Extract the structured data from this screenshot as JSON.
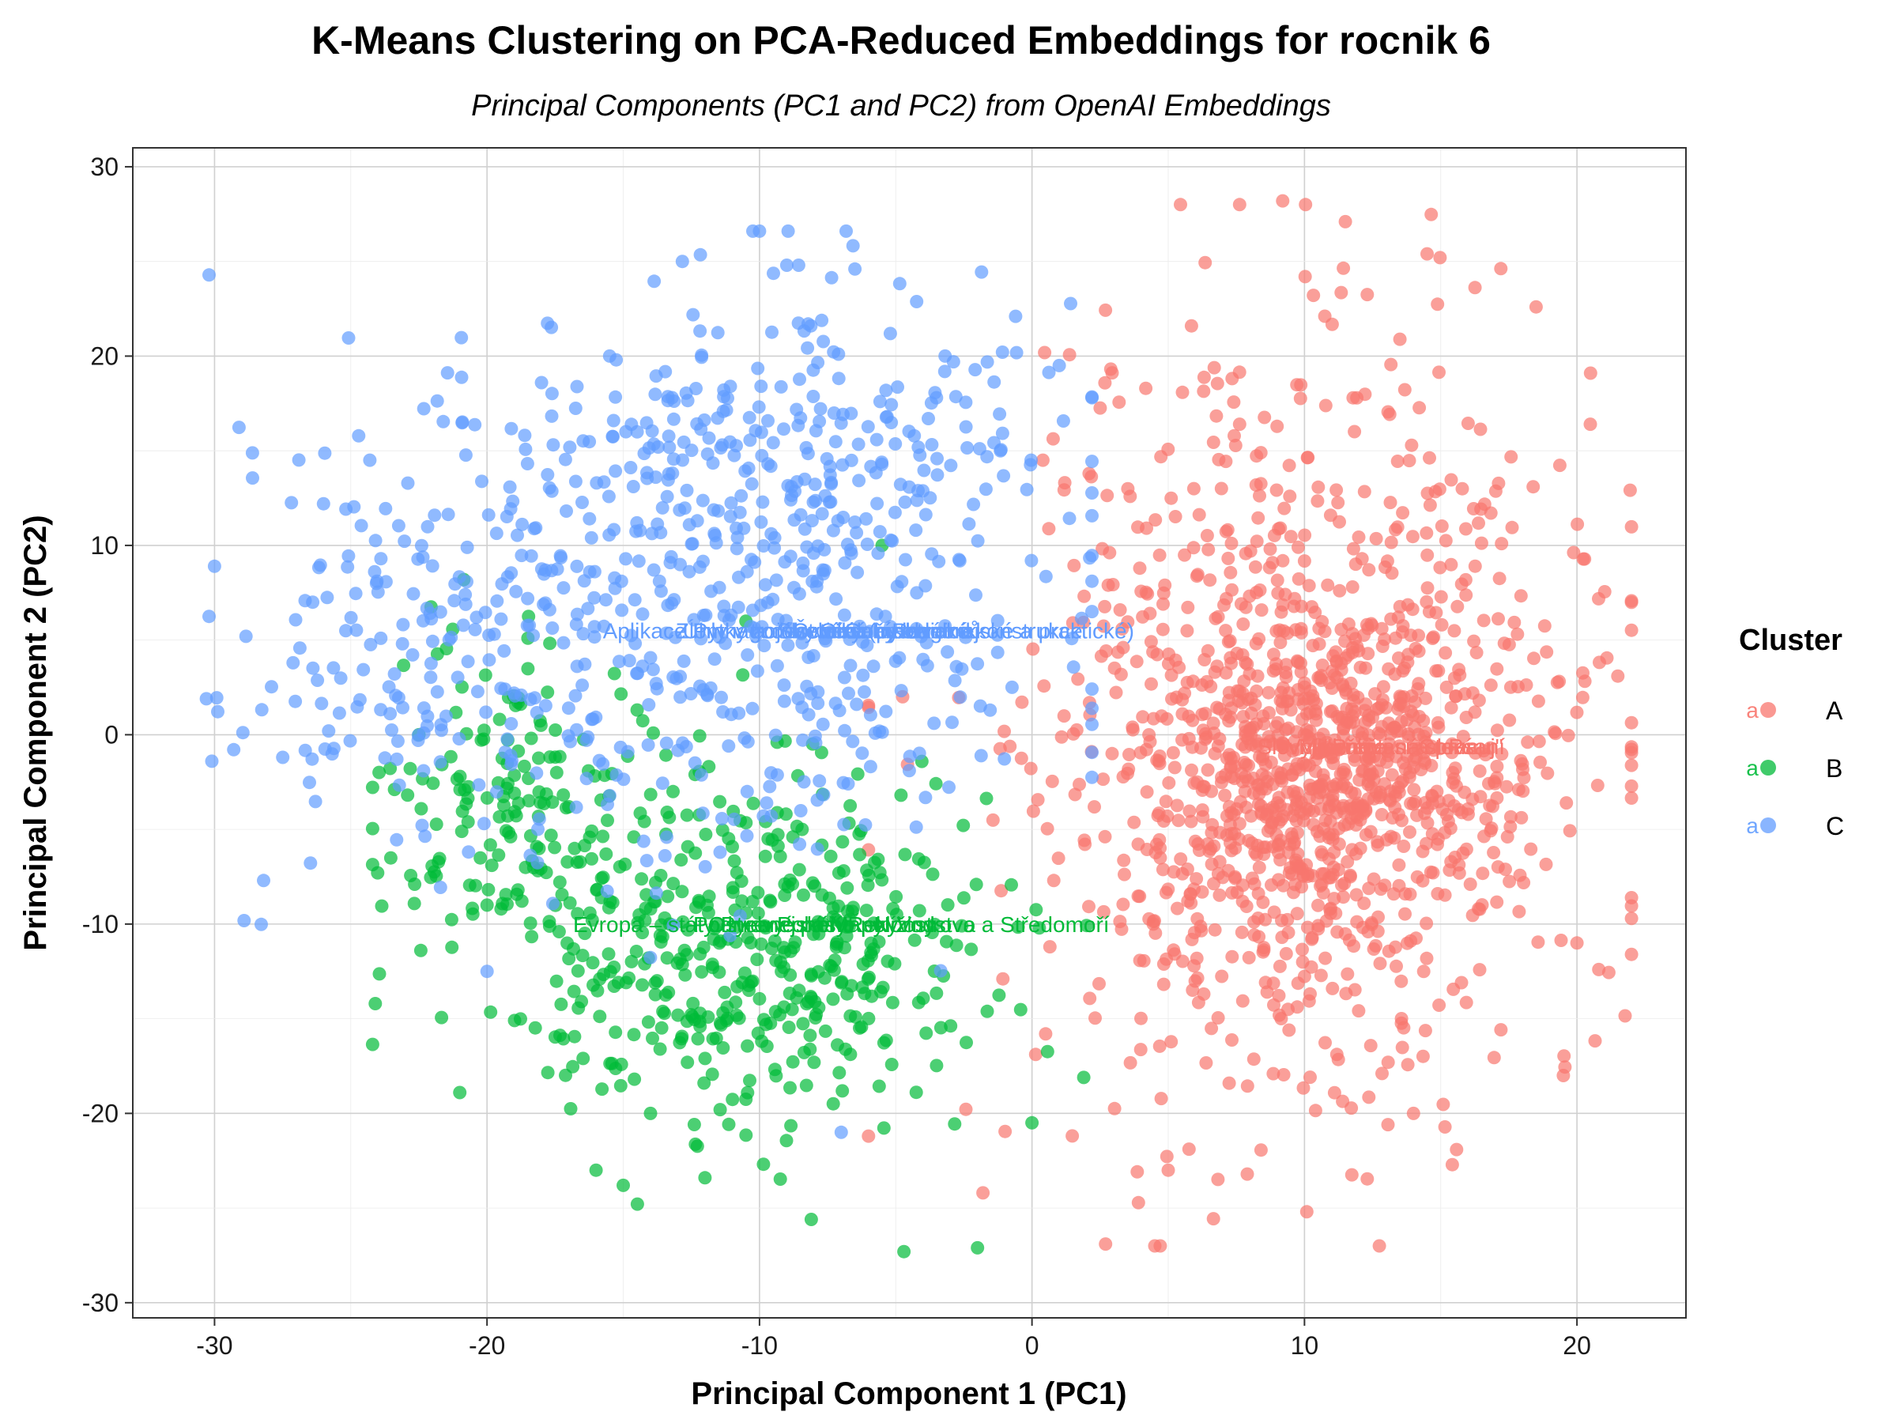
{
  "chart_data": {
    "type": "scatter",
    "title": "K-Means Clustering on PCA-Reduced Embeddings for rocnik 6",
    "subtitle": "Principal Components (PC1 and PC2) from OpenAI Embeddings",
    "xlabel": "Principal Component 1 (PC1)",
    "ylabel": "Principal Component 2 (PC2)",
    "xlim": [
      -33,
      24
    ],
    "ylim": [
      -30.8,
      31
    ],
    "x_ticks": [
      -30,
      -20,
      -10,
      0,
      10,
      20
    ],
    "y_ticks": [
      -30,
      -20,
      -10,
      0,
      10,
      20,
      30
    ],
    "x_tick_labels": [
      "-30",
      "-20",
      "-10",
      "0",
      "10",
      "20"
    ],
    "y_tick_labels": [
      "-30",
      "-20",
      "-10",
      "0",
      "10",
      "20",
      "30"
    ],
    "grid": true,
    "point_alpha": 0.7,
    "legend": {
      "title": "Cluster",
      "placement": "right",
      "key_glyph": "a",
      "entries": [
        "A",
        "B",
        "C"
      ]
    },
    "series": [
      {
        "name": "A",
        "color": "#F8766D",
        "approx_points": 1400,
        "center": [
          10.5,
          -1.5
        ],
        "spread": [
          5.2,
          10.5
        ],
        "x_range": [
          -6,
          22
        ],
        "y_range": [
          -27,
          28
        ],
        "sample_points": [
          [
            9.2,
            28.2
          ],
          [
            21.5,
            3.1
          ],
          [
            20.5,
            19.1
          ],
          [
            20.8,
            -12.4
          ],
          [
            2.7,
            -26.9
          ],
          [
            -1.8,
            -24.2
          ],
          [
            -6,
            -21.2
          ],
          [
            0.4,
            14.5
          ],
          [
            11.5,
            27.1
          ],
          [
            14.5,
            25.4
          ],
          [
            18.5,
            22.6
          ],
          [
            20,
            -11
          ],
          [
            19.5,
            -18
          ],
          [
            14,
            -20
          ],
          [
            5,
            -23
          ],
          [
            0.5,
            -15.8
          ]
        ]
      },
      {
        "name": "B",
        "color": "#00BA38",
        "approx_points": 600,
        "center": [
          -10.5,
          -11
        ],
        "spread": [
          4.5,
          4.8
        ],
        "x_range": [
          -24.2,
          2
        ],
        "y_range": [
          -27.4,
          10
        ],
        "sample_points": [
          [
            -24.1,
            -14.2
          ],
          [
            -21,
            -18.9
          ],
          [
            -15,
            -23.8
          ],
          [
            -8.1,
            -25.6
          ],
          [
            -4.7,
            -27.3
          ],
          [
            -2,
            -27.1
          ],
          [
            -5.5,
            10
          ],
          [
            -22.5,
            0
          ],
          [
            -18.5,
            5.1
          ],
          [
            -10.5,
            6
          ],
          [
            0,
            -20.5
          ],
          [
            1.9,
            -18.1
          ],
          [
            -12,
            -23.4
          ],
          [
            -14,
            -20
          ],
          [
            -20,
            -9
          ],
          [
            -16,
            -23
          ]
        ]
      },
      {
        "name": "C",
        "color": "#619CFF",
        "approx_points": 800,
        "center": [
          -12,
          7
        ],
        "spread": [
          7,
          7
        ],
        "x_range": [
          -30.2,
          2.2
        ],
        "y_range": [
          -21,
          26.6
        ],
        "sample_points": [
          [
            -30,
            8.9
          ],
          [
            -30.3,
            1.9
          ],
          [
            -30.1,
            -1.4
          ],
          [
            -28.2,
            -7.7
          ],
          [
            -10,
            26.6
          ],
          [
            -9,
            24.8
          ],
          [
            -6.5,
            24.6
          ],
          [
            -0.6,
            22.1
          ],
          [
            1,
            19.5
          ],
          [
            2.2,
            17.8
          ],
          [
            -7,
            -21
          ],
          [
            -20,
            -12.5
          ],
          [
            -18,
            18.6
          ],
          [
            -15.5,
            20
          ],
          [
            -26,
            12.2
          ],
          [
            -24.3,
            14.5
          ]
        ]
      }
    ],
    "overlapping_labels": [
      {
        "series": "C",
        "x": -6,
        "y": 5.5
      },
      {
        "series": "A",
        "x": 14,
        "y": -0.6
      },
      {
        "series": "B",
        "x": -7,
        "y": -10
      }
    ]
  },
  "annotations": {
    "c_labels": [
      "Aplikace Pythagorovy věty (pythagorejské a praktické)",
      "Zlomky a desetinná čísla",
      "Obsahy obrazců",
      "Slovní úlohy",
      "Rovnice",
      "Úhly v trojúhelníku",
      "Geometrické konstrukce",
      "Čtverec a obdélník"
    ],
    "a_labels": [
      "\"Přečti si a pracuj\"",
      "Mluvnice",
      "Čtení",
      "Vyjmenovaná slova",
      "Psaní",
      "Slovní druhy"
    ],
    "b_labels": [
      "Evropa – státy Pyrenejského poloostrova a Středomoří",
      "Podnebné pásy",
      "Řeky",
      "Pohoří",
      "Nížiny",
      "Ostrovy",
      "Vodstvo",
      "Mapy"
    ]
  }
}
